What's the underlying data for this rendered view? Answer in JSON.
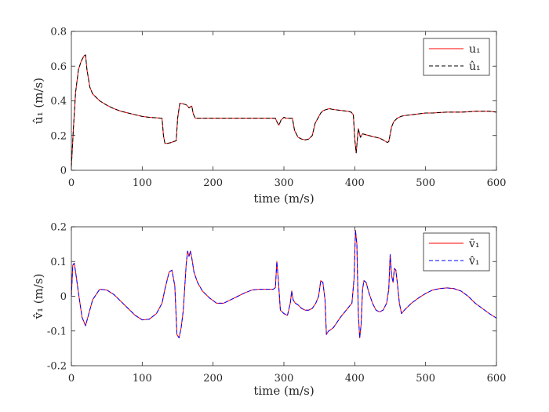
{
  "chart_data": [
    {
      "type": "line",
      "xlabel": "time (m/s)",
      "ylabel": "û₁ (m/s)",
      "xlim": [
        0,
        600
      ],
      "ylim": [
        0,
        0.8
      ],
      "xticks": [
        "0",
        "100",
        "200",
        "300",
        "400",
        "500",
        "600"
      ],
      "yticks": [
        "0",
        "0.2",
        "0.4",
        "0.6",
        "0.8"
      ],
      "grid": false,
      "legend_position": "top-right",
      "x": [
        0,
        3,
        6,
        10,
        14,
        18,
        20,
        22,
        26,
        30,
        40,
        50,
        60,
        70,
        80,
        90,
        100,
        110,
        120,
        128,
        130,
        132,
        135,
        138,
        141,
        144,
        148,
        150,
        153,
        156,
        160,
        163,
        166,
        170,
        172,
        175,
        180,
        190,
        200,
        210,
        220,
        230,
        240,
        250,
        260,
        270,
        280,
        288,
        290,
        293,
        296,
        300,
        303,
        307,
        310,
        312,
        315,
        320,
        325,
        330,
        335,
        340,
        344,
        348,
        352,
        356,
        360,
        364,
        370,
        380,
        390,
        395,
        398,
        400,
        402,
        405,
        408,
        411,
        415,
        420,
        425,
        430,
        435,
        440,
        444,
        446,
        448,
        452,
        455,
        460,
        465,
        470,
        480,
        490,
        500,
        510,
        520,
        530,
        540,
        550,
        560,
        570,
        580,
        590,
        600
      ],
      "series": [
        {
          "name": "u₁",
          "color": "#ff0000",
          "style": "solid",
          "values": [
            0.02,
            0.25,
            0.45,
            0.58,
            0.63,
            0.66,
            0.665,
            0.58,
            0.48,
            0.44,
            0.4,
            0.375,
            0.355,
            0.34,
            0.33,
            0.32,
            0.31,
            0.305,
            0.302,
            0.3,
            0.2,
            0.155,
            0.155,
            0.157,
            0.16,
            0.165,
            0.17,
            0.3,
            0.385,
            0.385,
            0.38,
            0.375,
            0.36,
            0.37,
            0.325,
            0.3,
            0.3,
            0.3,
            0.3,
            0.3,
            0.3,
            0.3,
            0.3,
            0.3,
            0.3,
            0.3,
            0.3,
            0.3,
            0.28,
            0.26,
            0.29,
            0.305,
            0.3,
            0.3,
            0.3,
            0.3,
            0.23,
            0.19,
            0.18,
            0.175,
            0.18,
            0.2,
            0.27,
            0.3,
            0.33,
            0.345,
            0.35,
            0.355,
            0.35,
            0.345,
            0.34,
            0.335,
            0.32,
            0.18,
            0.1,
            0.24,
            0.19,
            0.21,
            0.205,
            0.2,
            0.195,
            0.19,
            0.185,
            0.175,
            0.165,
            0.16,
            0.165,
            0.25,
            0.28,
            0.3,
            0.31,
            0.315,
            0.32,
            0.325,
            0.33,
            0.33,
            0.333,
            0.335,
            0.335,
            0.335,
            0.337,
            0.34,
            0.34,
            0.34,
            0.335
          ]
        },
        {
          "name": "û₁",
          "color": "#000000",
          "style": "dashed",
          "values": [
            0.02,
            0.25,
            0.45,
            0.58,
            0.63,
            0.66,
            0.665,
            0.58,
            0.48,
            0.44,
            0.4,
            0.375,
            0.355,
            0.34,
            0.33,
            0.32,
            0.31,
            0.305,
            0.302,
            0.3,
            0.2,
            0.155,
            0.155,
            0.157,
            0.16,
            0.165,
            0.17,
            0.3,
            0.385,
            0.385,
            0.38,
            0.375,
            0.36,
            0.37,
            0.325,
            0.3,
            0.3,
            0.3,
            0.3,
            0.3,
            0.3,
            0.3,
            0.3,
            0.3,
            0.3,
            0.3,
            0.3,
            0.3,
            0.28,
            0.26,
            0.29,
            0.305,
            0.3,
            0.3,
            0.3,
            0.3,
            0.23,
            0.19,
            0.18,
            0.175,
            0.18,
            0.2,
            0.27,
            0.3,
            0.33,
            0.345,
            0.35,
            0.355,
            0.35,
            0.345,
            0.34,
            0.335,
            0.32,
            0.18,
            0.1,
            0.24,
            0.19,
            0.21,
            0.205,
            0.2,
            0.195,
            0.19,
            0.185,
            0.175,
            0.165,
            0.16,
            0.165,
            0.25,
            0.28,
            0.3,
            0.31,
            0.315,
            0.32,
            0.325,
            0.33,
            0.33,
            0.333,
            0.335,
            0.335,
            0.335,
            0.337,
            0.34,
            0.34,
            0.34,
            0.335
          ]
        }
      ]
    },
    {
      "type": "line",
      "xlabel": "time (m/s)",
      "ylabel": "v̂₁ (m/s)",
      "xlim": [
        0,
        600
      ],
      "ylim": [
        -0.2,
        0.2
      ],
      "xticks": [
        "0",
        "100",
        "200",
        "300",
        "400",
        "500",
        "600"
      ],
      "yticks": [
        "-0.2",
        "-0.1",
        "0",
        "0.1",
        "0.2"
      ],
      "grid": false,
      "legend_position": "top-right",
      "x": [
        0,
        2,
        4,
        6,
        10,
        15,
        20,
        30,
        40,
        50,
        60,
        70,
        80,
        90,
        100,
        110,
        120,
        128,
        132,
        138,
        142,
        146,
        149,
        152,
        155,
        158,
        162,
        164,
        166,
        168,
        170,
        173,
        178,
        185,
        195,
        205,
        215,
        225,
        235,
        245,
        255,
        265,
        275,
        285,
        288,
        290,
        292,
        295,
        300,
        305,
        309,
        311,
        313,
        316,
        320,
        325,
        330,
        335,
        340,
        345,
        349,
        352,
        355,
        358,
        360,
        363,
        367,
        370,
        380,
        390,
        396,
        399,
        401,
        403,
        405,
        407,
        409,
        411,
        413,
        416,
        420,
        425,
        430,
        435,
        440,
        445,
        448,
        450,
        452,
        454,
        456,
        458,
        460,
        463,
        466,
        470,
        480,
        490,
        500,
        510,
        520,
        530,
        540,
        550,
        560,
        570,
        580,
        590,
        600
      ],
      "series": [
        {
          "name": "v̄₁",
          "color": "#ff0000",
          "style": "solid",
          "values": [
            0.0,
            0.09,
            0.095,
            0.07,
            0.01,
            -0.06,
            -0.085,
            -0.01,
            0.02,
            0.018,
            0.005,
            -0.015,
            -0.035,
            -0.055,
            -0.068,
            -0.066,
            -0.05,
            -0.02,
            0.02,
            0.07,
            0.075,
            0.03,
            -0.11,
            -0.12,
            -0.09,
            -0.04,
            0.09,
            0.13,
            0.115,
            0.13,
            0.11,
            0.07,
            0.04,
            0.015,
            -0.005,
            -0.02,
            -0.02,
            -0.01,
            0.0,
            0.01,
            0.018,
            0.02,
            0.02,
            0.02,
            0.025,
            0.1,
            0.05,
            -0.04,
            -0.05,
            -0.055,
            -0.02,
            0.015,
            -0.01,
            -0.02,
            -0.025,
            -0.035,
            -0.04,
            -0.04,
            -0.035,
            -0.02,
            0.0,
            0.045,
            0.04,
            -0.01,
            -0.11,
            -0.1,
            -0.095,
            -0.09,
            -0.06,
            -0.035,
            -0.02,
            0.05,
            0.19,
            0.15,
            -0.05,
            -0.12,
            -0.08,
            0.02,
            0.045,
            0.04,
            0.01,
            -0.02,
            -0.04,
            -0.045,
            -0.04,
            -0.02,
            0.02,
            0.12,
            0.06,
            0.04,
            0.08,
            0.075,
            0.04,
            -0.02,
            -0.05,
            -0.04,
            -0.02,
            -0.005,
            0.008,
            0.018,
            0.022,
            0.024,
            0.022,
            0.015,
            0.0,
            -0.02,
            -0.035,
            -0.05,
            -0.063
          ]
        },
        {
          "name": "v̂₁",
          "color": "#0000ff",
          "style": "dashed",
          "values": [
            0.0,
            0.09,
            0.095,
            0.07,
            0.01,
            -0.06,
            -0.085,
            -0.01,
            0.02,
            0.018,
            0.005,
            -0.015,
            -0.035,
            -0.055,
            -0.068,
            -0.066,
            -0.05,
            -0.02,
            0.02,
            0.07,
            0.075,
            0.03,
            -0.11,
            -0.12,
            -0.09,
            -0.04,
            0.09,
            0.13,
            0.115,
            0.13,
            0.11,
            0.07,
            0.04,
            0.015,
            -0.005,
            -0.02,
            -0.02,
            -0.01,
            0.0,
            0.01,
            0.018,
            0.02,
            0.02,
            0.02,
            0.025,
            0.1,
            0.05,
            -0.04,
            -0.05,
            -0.055,
            -0.02,
            0.015,
            -0.01,
            -0.02,
            -0.025,
            -0.035,
            -0.04,
            -0.04,
            -0.035,
            -0.02,
            0.0,
            0.045,
            0.04,
            -0.01,
            -0.11,
            -0.1,
            -0.095,
            -0.09,
            -0.06,
            -0.035,
            -0.02,
            0.05,
            0.19,
            0.15,
            -0.05,
            -0.12,
            -0.08,
            0.02,
            0.045,
            0.04,
            0.01,
            -0.02,
            -0.04,
            -0.045,
            -0.04,
            -0.02,
            0.02,
            0.12,
            0.06,
            0.04,
            0.08,
            0.075,
            0.04,
            -0.02,
            -0.05,
            -0.04,
            -0.02,
            -0.005,
            0.008,
            0.018,
            0.022,
            0.024,
            0.022,
            0.015,
            0.0,
            -0.02,
            -0.035,
            -0.05,
            -0.063
          ]
        }
      ]
    }
  ]
}
